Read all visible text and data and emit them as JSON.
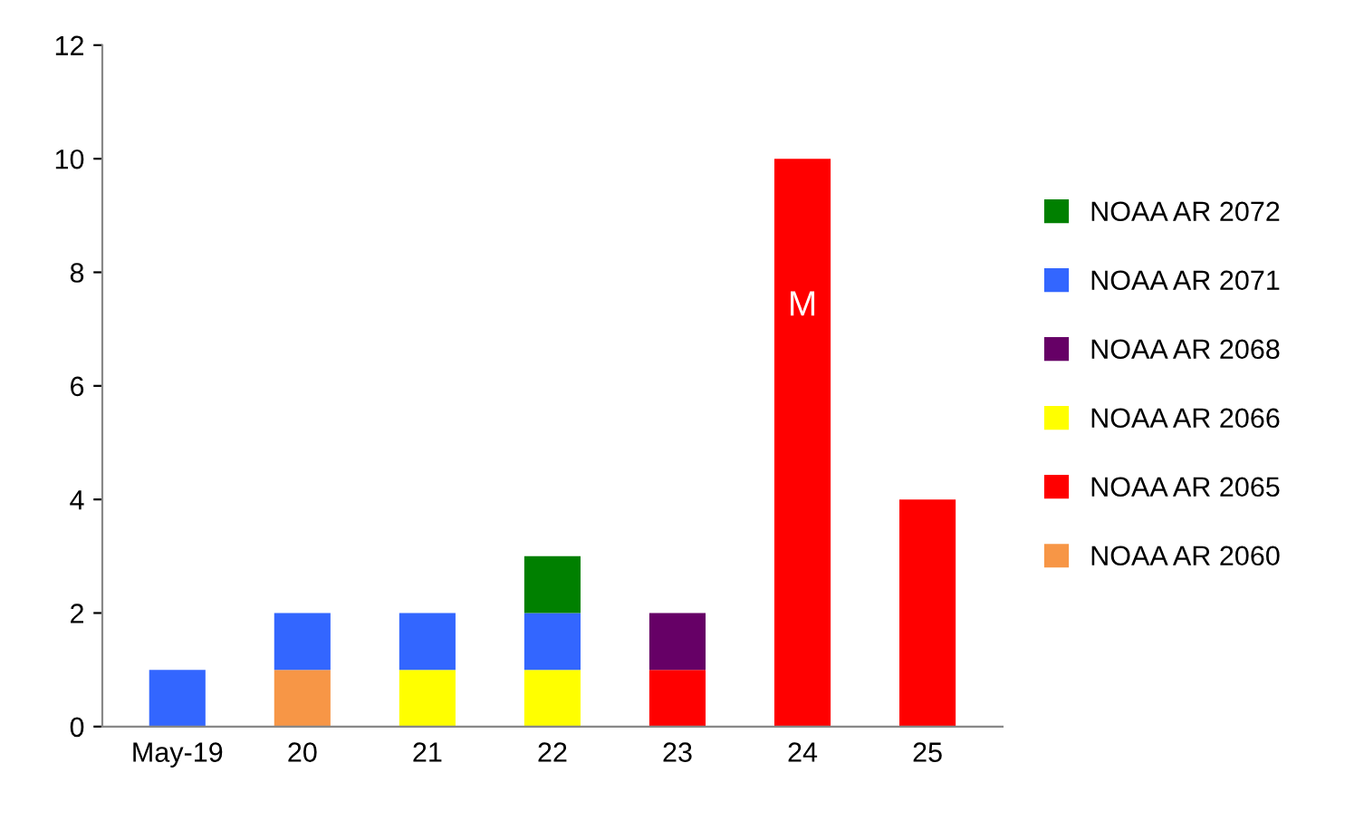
{
  "chart_data": {
    "type": "bar",
    "stacked": true,
    "categories": [
      "May-19",
      "20",
      "21",
      "22",
      "23",
      "24",
      "25"
    ],
    "series": [
      {
        "name": "NOAA AR 2060",
        "color": "#f79646",
        "values": [
          null,
          1,
          null,
          null,
          null,
          null,
          null
        ]
      },
      {
        "name": "NOAA AR 2065",
        "color": "#ff0000",
        "values": [
          null,
          null,
          null,
          null,
          1,
          10,
          4
        ]
      },
      {
        "name": "NOAA AR 2066",
        "color": "#ffff00",
        "values": [
          null,
          null,
          1,
          1,
          null,
          null,
          null
        ]
      },
      {
        "name": "NOAA AR 2068",
        "color": "#660066",
        "values": [
          null,
          null,
          null,
          null,
          1,
          null,
          null
        ]
      },
      {
        "name": "NOAA AR 2071",
        "color": "#3366ff",
        "values": [
          1,
          1,
          1,
          1,
          null,
          null,
          null
        ]
      },
      {
        "name": "NOAA AR 2072",
        "color": "#008000",
        "values": [
          null,
          null,
          null,
          1,
          null,
          null,
          null
        ]
      }
    ],
    "ylim": [
      0,
      12
    ],
    "yticks": [
      0,
      2,
      4,
      6,
      8,
      10,
      12
    ],
    "grid": false,
    "legend": "right",
    "annotations": [
      "M"
    ]
  }
}
